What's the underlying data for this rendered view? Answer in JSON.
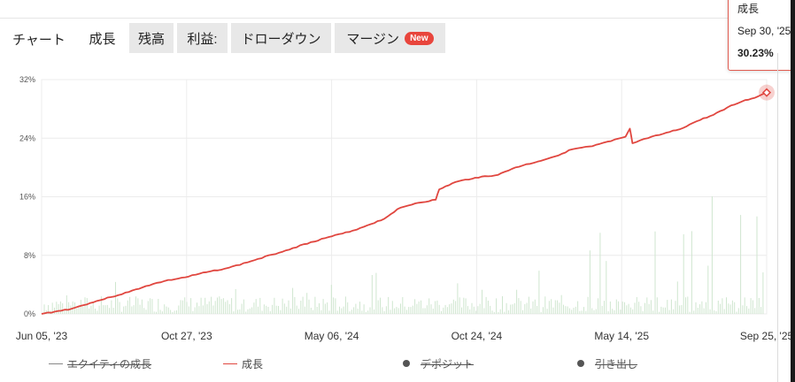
{
  "tabs": {
    "title": "チャート",
    "items": [
      {
        "label": "成長",
        "active": true
      },
      {
        "label": "残高",
        "active": false
      },
      {
        "label": "利益:",
        "active": false
      },
      {
        "label": "ドローダウン",
        "active": false
      },
      {
        "label": "マージン",
        "active": false,
        "badge": "New"
      }
    ]
  },
  "tooltip": {
    "title": "成長",
    "date": "Sep 30, '25",
    "value": "30.23%"
  },
  "legend": [
    {
      "label": "エクイティの成長",
      "disabled": true,
      "marker": "line",
      "color": "#888888"
    },
    {
      "label": "成長",
      "disabled": false,
      "marker": "line",
      "color": "#e0463f"
    },
    {
      "label": "デポジット",
      "disabled": true,
      "marker": "dot",
      "color": "#555555"
    },
    {
      "label": "引き出し",
      "disabled": true,
      "marker": "dot",
      "color": "#555555"
    }
  ],
  "chart_data": {
    "type": "line",
    "x_start": "2023-06-05",
    "x_end": "2025-09-30",
    "ylim": [
      0,
      32
    ],
    "yticks": [
      "32%",
      "24%",
      "16%",
      "8%",
      "0%"
    ],
    "xticks": [
      "Jun 05, '23",
      "Oct 27, '23",
      "May 06, '24",
      "Oct 24, '24",
      "May 14, '25",
      "Sep 25, '25"
    ],
    "grid": true,
    "colors": {
      "growth": "#e0463f",
      "volume": "#cfe6cf",
      "grid": "#ececec"
    },
    "series": [
      {
        "name": "成長",
        "points": [
          [
            "2023-06-05",
            0.0
          ],
          [
            "2023-06-20",
            0.3
          ],
          [
            "2023-07-10",
            0.7
          ],
          [
            "2023-08-01",
            1.5
          ],
          [
            "2023-08-25",
            2.3
          ],
          [
            "2023-09-15",
            3.0
          ],
          [
            "2023-10-05",
            3.8
          ],
          [
            "2023-10-27",
            4.5
          ],
          [
            "2023-11-20",
            5.0
          ],
          [
            "2023-12-15",
            5.7
          ],
          [
            "2024-01-10",
            6.3
          ],
          [
            "2024-02-05",
            7.2
          ],
          [
            "2024-03-01",
            8.1
          ],
          [
            "2024-03-25",
            9.0
          ],
          [
            "2024-04-15",
            9.8
          ],
          [
            "2024-05-06",
            10.5
          ],
          [
            "2024-05-30",
            11.2
          ],
          [
            "2024-06-20",
            12.1
          ],
          [
            "2024-07-10",
            13.0
          ],
          [
            "2024-07-25",
            14.3
          ],
          [
            "2024-08-15",
            15.1
          ],
          [
            "2024-09-08",
            15.6
          ],
          [
            "2024-09-12",
            17.0
          ],
          [
            "2024-10-01",
            18.0
          ],
          [
            "2024-10-24",
            18.6
          ],
          [
            "2024-11-20",
            19.0
          ],
          [
            "2024-12-10",
            20.0
          ],
          [
            "2025-01-05",
            20.8
          ],
          [
            "2025-01-25",
            21.5
          ],
          [
            "2025-02-15",
            22.5
          ],
          [
            "2025-03-10",
            22.9
          ],
          [
            "2025-04-01",
            23.6
          ],
          [
            "2025-04-18",
            24.2
          ],
          [
            "2025-04-23",
            25.3
          ],
          [
            "2025-04-26",
            23.3
          ],
          [
            "2025-05-14",
            24.0
          ],
          [
            "2025-06-01",
            24.6
          ],
          [
            "2025-06-20",
            25.2
          ],
          [
            "2025-07-10",
            26.3
          ],
          [
            "2025-07-30",
            27.2
          ],
          [
            "2025-08-15",
            28.2
          ],
          [
            "2025-09-01",
            29.0
          ],
          [
            "2025-09-20",
            29.7
          ],
          [
            "2025-09-30",
            30.23
          ]
        ]
      }
    ]
  }
}
